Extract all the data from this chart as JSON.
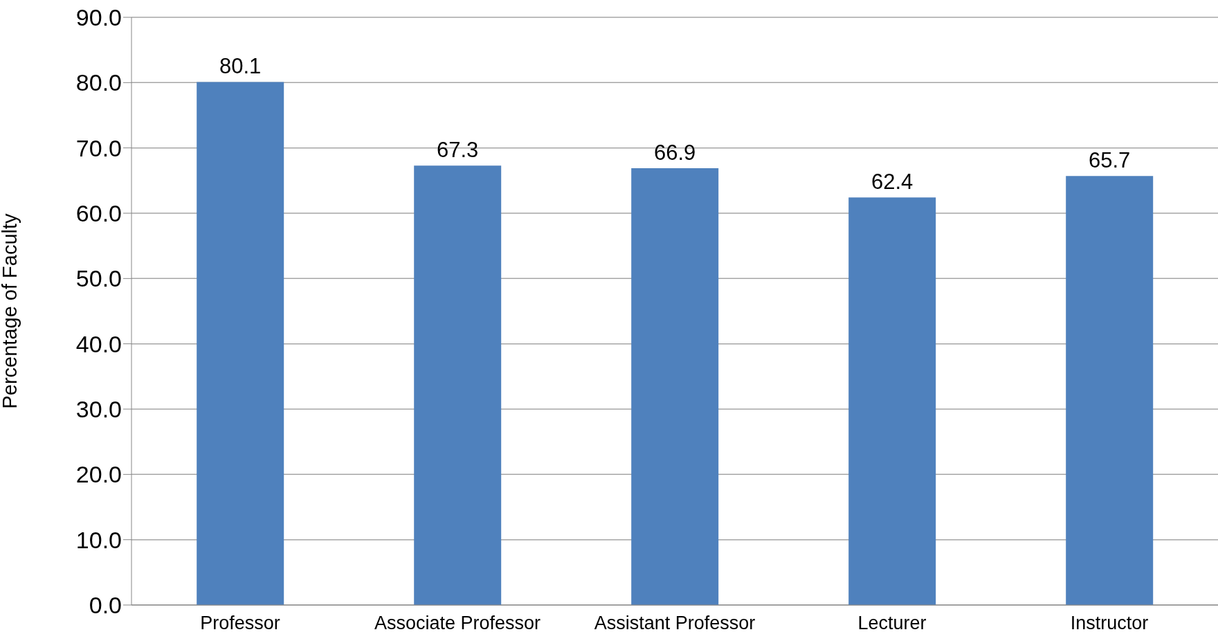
{
  "chart_data": {
    "type": "bar",
    "ylabel": "Percentage of Faculty",
    "categories": [
      "Professor",
      "Associate Professor",
      "Assistant Professor",
      "Lecturer",
      "Instructor"
    ],
    "values": [
      80.1,
      67.3,
      66.9,
      62.4,
      65.7
    ],
    "color": "#4f81bd",
    "ylim": [
      0,
      90
    ],
    "yticks": [
      {
        "value": 0,
        "label": "0.0"
      },
      {
        "value": 10,
        "label": "10.0"
      },
      {
        "value": 20,
        "label": "20.0"
      },
      {
        "value": 30,
        "label": "30.0"
      },
      {
        "value": 40,
        "label": "40.0"
      },
      {
        "value": 50,
        "label": "50.0"
      },
      {
        "value": 60,
        "label": "60.0"
      },
      {
        "value": 70,
        "label": "70.0"
      },
      {
        "value": 80,
        "label": "80.0"
      },
      {
        "value": 90,
        "label": "90.0"
      }
    ],
    "grid": "y",
    "data_labels": true
  }
}
